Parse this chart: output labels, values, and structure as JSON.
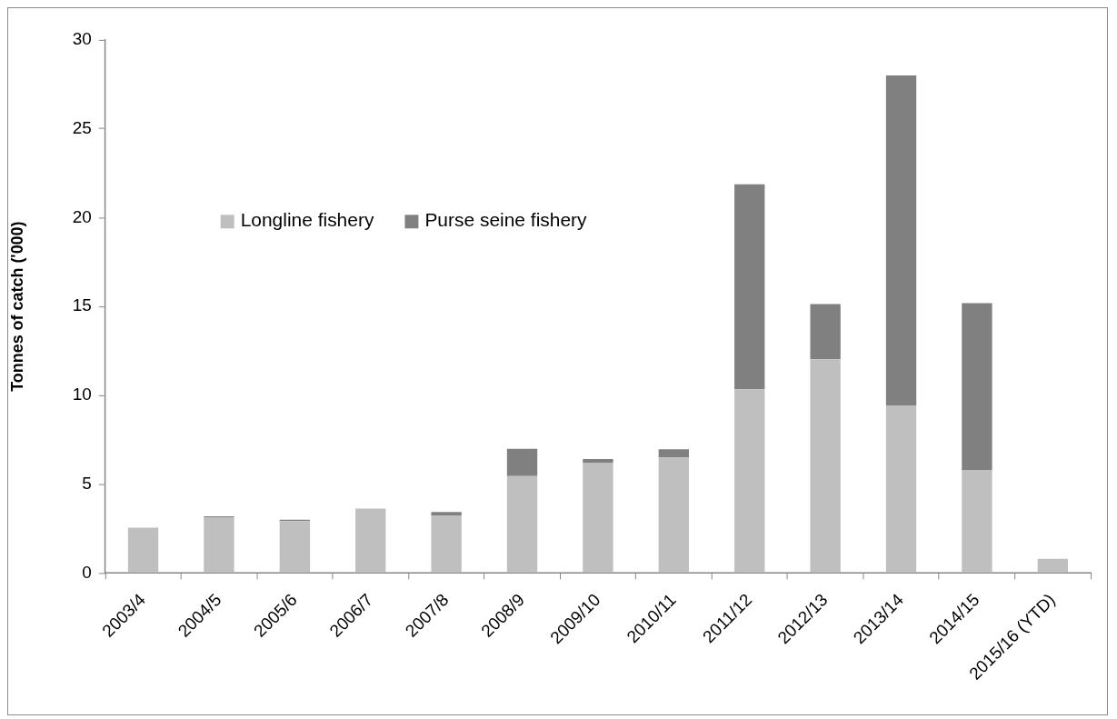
{
  "chart_data": {
    "type": "bar",
    "ylabel": "Tonnes of catch ('000)",
    "categories": [
      "2003/4",
      "2004/5",
      "2005/6",
      "2006/7",
      "2007/8",
      "2008/9",
      "2009/10",
      "2010/11",
      "2011/12",
      "2012/13",
      "2013/14",
      "2014/15",
      "2015/16 (YTD)"
    ],
    "series": [
      {
        "name": "Longline fishery",
        "color": "#bfbfbf",
        "values": [
          2.55,
          3.12,
          2.92,
          3.63,
          3.22,
          5.46,
          6.19,
          6.5,
          10.34,
          12.03,
          9.43,
          5.78,
          0.8
        ]
      },
      {
        "name": "Purse seine fishery",
        "color": "#808080",
        "values": [
          0,
          0.07,
          0.08,
          0,
          0.22,
          1.53,
          0.22,
          0.46,
          11.54,
          3.11,
          18.57,
          9.41,
          0
        ]
      }
    ],
    "stacked": true,
    "ylim": [
      0,
      30
    ],
    "yticks": [
      0,
      5,
      10,
      15,
      20,
      25,
      30
    ],
    "grid": false,
    "legend": "top left"
  }
}
